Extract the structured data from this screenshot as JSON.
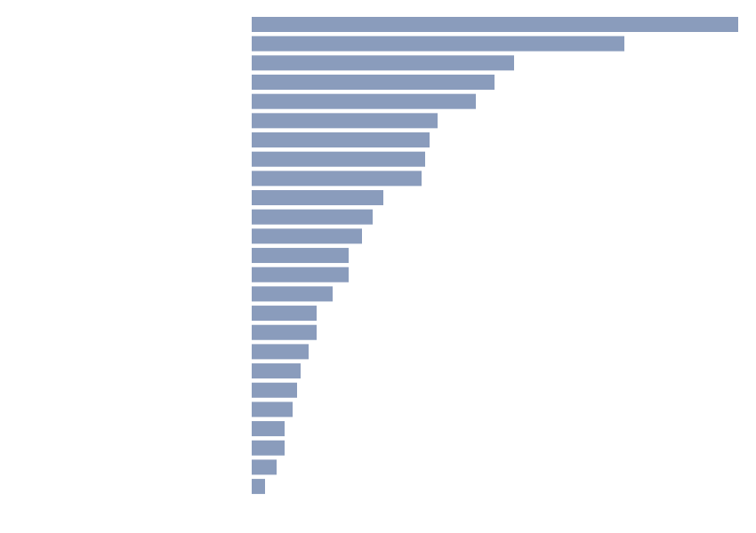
{
  "chart_data": {
    "type": "bar",
    "orientation": "horizontal",
    "categories": [
      null,
      null,
      null,
      null,
      null,
      null,
      null,
      null,
      null,
      null,
      null,
      null,
      null,
      null,
      null,
      null,
      null,
      null,
      null,
      null,
      null,
      null,
      null,
      null,
      null
    ],
    "values": [
      547,
      419,
      295,
      273,
      252,
      209,
      200,
      195,
      191,
      148,
      136,
      124,
      109,
      109,
      91,
      73,
      73,
      64,
      55,
      51,
      46,
      37,
      37,
      28,
      15
    ],
    "color": "#8a9cbc",
    "xlim": [
      0,
      547
    ]
  }
}
